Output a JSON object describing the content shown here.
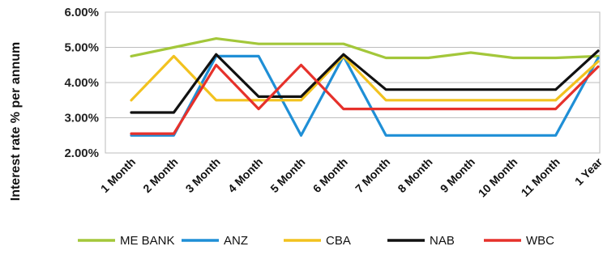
{
  "chart_data": {
    "type": "line",
    "title": "",
    "xlabel": "",
    "ylabel": "Interest rate % per annum",
    "ylim": [
      2.0,
      6.0
    ],
    "yticks": [
      "2.00%",
      "3.00%",
      "4.00%",
      "5.00%",
      "6.00%"
    ],
    "ytick_values": [
      2.0,
      3.0,
      4.0,
      5.0,
      6.0
    ],
    "grid": "horizontal",
    "legend_position": "bottom",
    "categories": [
      "1 Month",
      "2 Month",
      "3 Month",
      "4 Month",
      "5 Month",
      "6 Month",
      "7 Month",
      "8 Month",
      "9 Month",
      "10 Month",
      "11 Month",
      "1 Year"
    ],
    "series": [
      {
        "name": "ME BANK",
        "color": "#a3c73a",
        "values": [
          4.75,
          5.0,
          5.25,
          5.1,
          5.1,
          5.1,
          4.7,
          4.7,
          4.85,
          4.7,
          4.7,
          4.75
        ]
      },
      {
        "name": "ANZ",
        "color": "#1f8fd6",
        "values": [
          2.5,
          2.5,
          4.75,
          4.75,
          2.5,
          4.75,
          2.5,
          2.5,
          2.5,
          2.5,
          2.5,
          4.7
        ]
      },
      {
        "name": "CBA",
        "color": "#f2c21f",
        "values": [
          3.5,
          4.75,
          3.5,
          3.5,
          3.5,
          4.75,
          3.5,
          3.5,
          3.5,
          3.5,
          3.5,
          4.6
        ]
      },
      {
        "name": "NAB",
        "color": "#111111",
        "values": [
          3.15,
          3.15,
          4.8,
          3.6,
          3.6,
          4.8,
          3.8,
          3.8,
          3.8,
          3.8,
          3.8,
          4.9
        ]
      },
      {
        "name": "WBC",
        "color": "#e6312b",
        "values": [
          2.55,
          2.55,
          4.5,
          3.25,
          4.5,
          3.25,
          3.25,
          3.25,
          3.25,
          3.25,
          3.25,
          4.45
        ]
      }
    ]
  }
}
